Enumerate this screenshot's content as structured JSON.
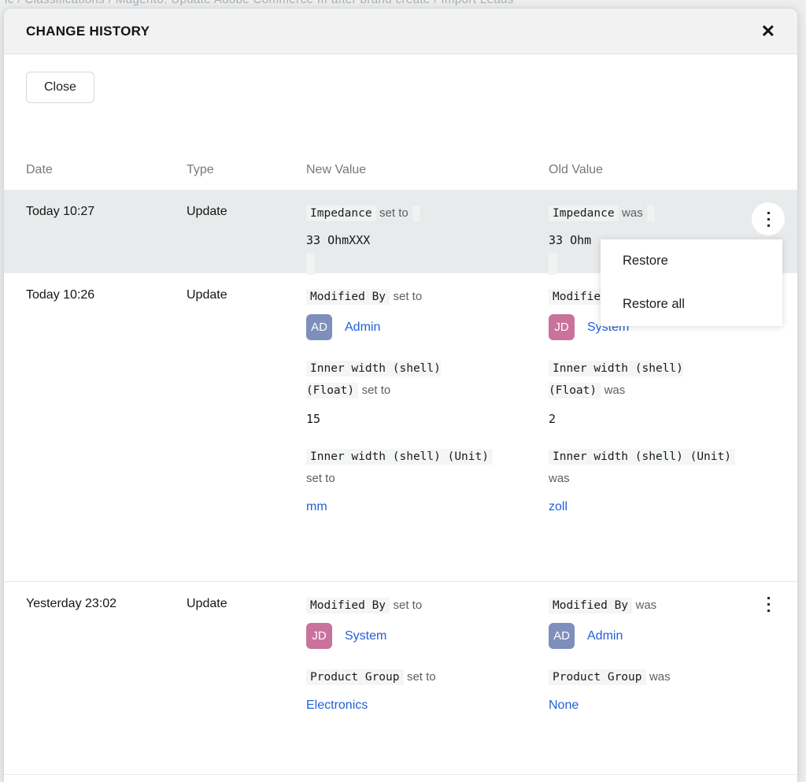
{
  "background": {
    "breadcrumb": "ic  /  Classifications  /  Magento: Update Adobe Commerce III after brand create  /  Import Leads"
  },
  "modal": {
    "title": "CHANGE HISTORY",
    "close_icon": "✕",
    "close_button": "Close"
  },
  "table": {
    "headers": {
      "date": "Date",
      "type": "Type",
      "new_value": "New Value",
      "old_value": "Old Value"
    },
    "rows": [
      {
        "date": "Today 10:27",
        "type": "Update",
        "new_value": {
          "field": "Impedance",
          "verb": "set to",
          "value": "33 OhmXXX"
        },
        "old_value": {
          "field": "Impedance",
          "verb": "was",
          "value": "33 Ohm"
        }
      },
      {
        "date": "Today 10:26",
        "type": "Update",
        "new_value": {
          "changes": [
            {
              "field": "Modified By",
              "verb": "set to",
              "user_initials": "AD",
              "user_name": "Admin"
            },
            {
              "field": "Inner width (shell) (Float)",
              "verb": "set to",
              "value": "15"
            },
            {
              "field": "Inner width (shell) (Unit)",
              "verb": "set to",
              "link": "mm"
            }
          ]
        },
        "old_value": {
          "changes": [
            {
              "field": "Modified By",
              "verb": "was",
              "user_initials": "JD",
              "user_name": "System"
            },
            {
              "field": "Inner width (shell) (Float)",
              "verb": "was",
              "value": "2"
            },
            {
              "field": "Inner width (shell) (Unit)",
              "verb": "was",
              "link": "zoll"
            }
          ]
        }
      },
      {
        "date": "Yesterday 23:02",
        "type": "Update",
        "new_value": {
          "changes": [
            {
              "field": "Modified By",
              "verb": "set to",
              "user_initials": "JD",
              "user_name": "System"
            },
            {
              "field": "Product Group",
              "verb": "set to",
              "link": "Electronics"
            }
          ]
        },
        "old_value": {
          "changes": [
            {
              "field": "Modified By",
              "verb": "was",
              "user_initials": "AD",
              "user_name": "Admin"
            },
            {
              "field": "Product Group",
              "verb": "was",
              "link": "None"
            }
          ]
        }
      }
    ]
  },
  "menu": {
    "items": [
      {
        "label": "Restore"
      },
      {
        "label": "Restore all"
      }
    ]
  },
  "colors": {
    "link_blue": "#2160d9",
    "selected_row_bg": "#e8eaeb",
    "chip_bg": "#f4f5f5",
    "avatar_admin": "#7d8fba",
    "avatar_system": "#c9729c"
  }
}
